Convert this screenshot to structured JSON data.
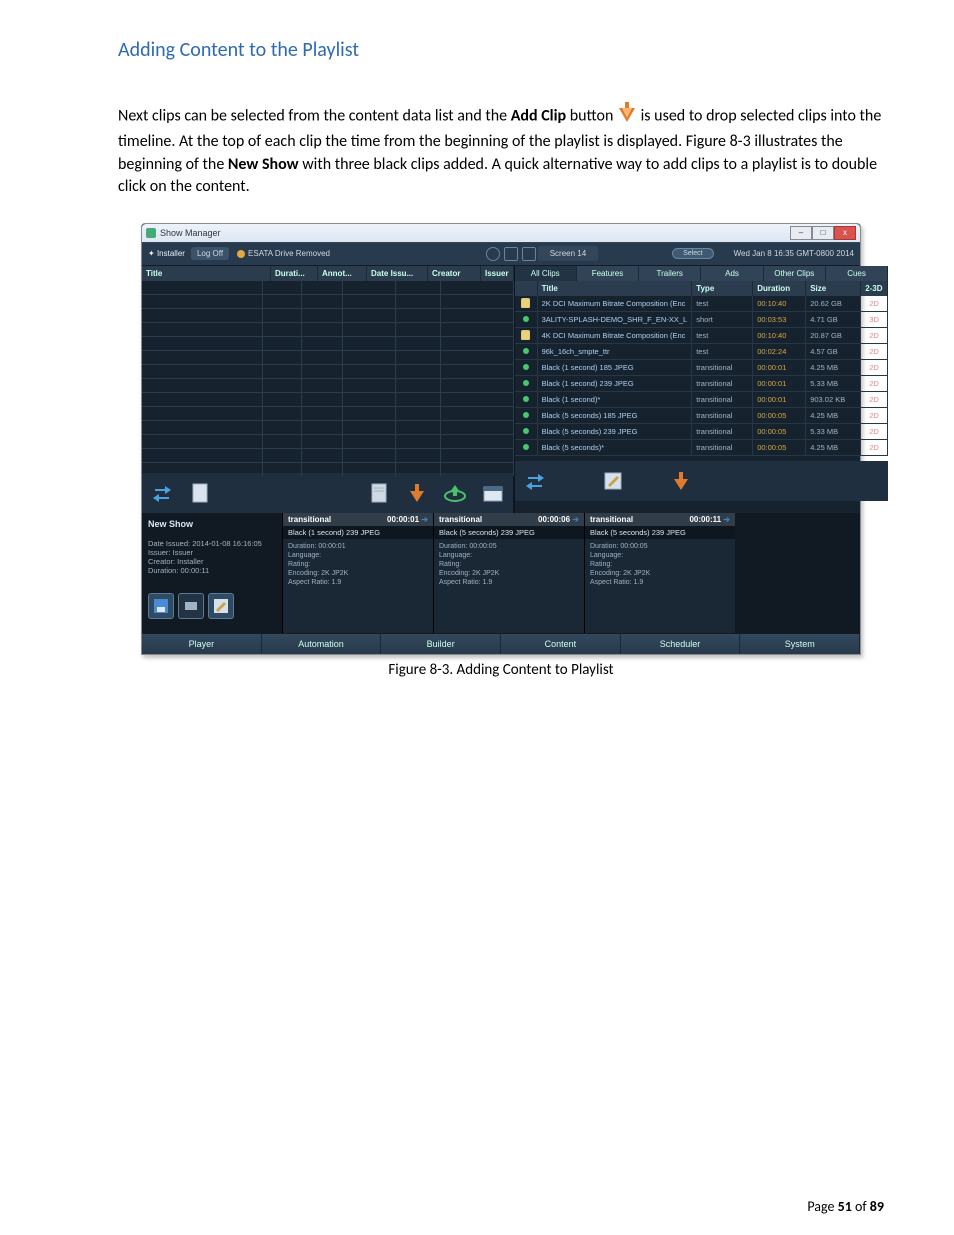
{
  "doc": {
    "heading": "Adding Content to the Playlist",
    "para_pre": "Next clips can be selected from the content data list and the ",
    "para_bold1": "Add Clip",
    "para_mid": " button ",
    "para_post": " is used to drop selected clips into the timeline.  At the top of each clip the time from the beginning of the playlist is displayed.  Figure 8-3 illustrates the beginning of the ",
    "para_bold2": "New Show",
    "para_tail": " with three black clips added.  A quick alternative way to add clips to a playlist is to double click on the content.",
    "caption": "Figure 8-3.  Adding Content to Playlist",
    "page_label": "Page ",
    "page_cur": "51",
    "page_of": " of ",
    "page_total": "89"
  },
  "titlebar": {
    "title": "Show Manager",
    "min": "–",
    "max": "□",
    "close": "x"
  },
  "hdr": {
    "installer": "Installer",
    "logoff": "Log Off",
    "esata": "ESATA Drive Removed",
    "screen": "Screen 14",
    "select": "Select",
    "timestamp": "Wed Jan 8 16:35 GMT-0800 2014"
  },
  "left_cols": [
    "Title",
    "Durati...",
    "Annot...",
    "Date Issu...",
    "Creator",
    "Issuer"
  ],
  "left_row_count": 14,
  "tabs": [
    "All Clips",
    "Features",
    "Trailers",
    "Ads",
    "Other Clips",
    "Cues"
  ],
  "right_cols": [
    "",
    "Title",
    "Type",
    "Duration",
    "Size",
    "2-3D"
  ],
  "right_rows": [
    {
      "lock": true,
      "title": "2K DCI Maximum Bitrate Composition (Enc",
      "type": "test",
      "dur": "00:10:40",
      "size": "20.62 GB",
      "d": "2D"
    },
    {
      "lock": false,
      "title": "3ALITY-SPLASH-DEMO_SHR_F_EN-XX_L",
      "type": "short",
      "dur": "00:03:53",
      "size": "4.71 GB",
      "d": "3D"
    },
    {
      "lock": true,
      "title": "4K DCI Maximum Bitrate Composition (Enc",
      "type": "test",
      "dur": "00:10:40",
      "size": "20.87 GB",
      "d": "2D"
    },
    {
      "lock": false,
      "title": "96k_16ch_smpte_ttr",
      "type": "test",
      "dur": "00:02:24",
      "size": "4.57 GB",
      "d": "2D"
    },
    {
      "lock": false,
      "title": "Black (1 second) 185 JPEG",
      "type": "transitional",
      "dur": "00:00:01",
      "size": "4.25 MB",
      "d": "2D"
    },
    {
      "lock": false,
      "title": "Black (1 second) 239 JPEG",
      "type": "transitional",
      "dur": "00:00:01",
      "size": "5.33 MB",
      "d": "2D"
    },
    {
      "lock": false,
      "title": "Black (1 second)*",
      "type": "transitional",
      "dur": "00:00:01",
      "size": "903.02 KB",
      "d": "2D"
    },
    {
      "lock": false,
      "title": "Black (5 seconds) 185 JPEG",
      "type": "transitional",
      "dur": "00:00:05",
      "size": "4.25 MB",
      "d": "2D"
    },
    {
      "lock": false,
      "title": "Black (5 seconds) 239 JPEG",
      "type": "transitional",
      "dur": "00:00:05",
      "size": "5.33 MB",
      "d": "2D"
    },
    {
      "lock": false,
      "title": "Black (5 seconds)*",
      "type": "transitional",
      "dur": "00:00:05",
      "size": "4.25 MB",
      "d": "2D"
    }
  ],
  "showmeta": {
    "name": "New Show",
    "issued": "Date Issued: 2014-01-08 16:16:05",
    "issuer": "Issuer: Issuer",
    "creator": "Creator: Installer",
    "dur": "Duration: 00:00:11"
  },
  "clips": [
    {
      "type": "transitional",
      "time": "00:00:01",
      "title": "Black (1 second) 239 JPEG",
      "dur": "Duration: 00:00:01",
      "lang": "Language:",
      "rating": "Rating:",
      "enc": "Encoding: 2K JP2K",
      "ar": "Aspect Ratio: 1.9"
    },
    {
      "type": "transitional",
      "time": "00:00:06",
      "title": "Black (5 seconds) 239 JPEG",
      "dur": "Duration: 00:00:05",
      "lang": "Language:",
      "rating": "Rating:",
      "enc": "Encoding: 2K JP2K",
      "ar": "Aspect Ratio: 1.9"
    },
    {
      "type": "transitional",
      "time": "00:00:11",
      "title": "Black (5 seconds) 239 JPEG",
      "dur": "Duration: 00:00:05",
      "lang": "Language:",
      "rating": "Rating:",
      "enc": "Encoding: 2K JP2K",
      "ar": "Aspect Ratio: 1.9"
    }
  ],
  "bottom_nav": [
    "Player",
    "Automation",
    "Builder",
    "Content",
    "Scheduler",
    "System"
  ],
  "colors": {
    "accent": "#2e6ab1",
    "app_bg": "#16232f",
    "panel": "#2a3c4e",
    "orange": "#e07b2e",
    "green": "#4bbf6b",
    "blue": "#4aa3e0",
    "gold": "#d9a441",
    "red2d": "#e08484"
  }
}
